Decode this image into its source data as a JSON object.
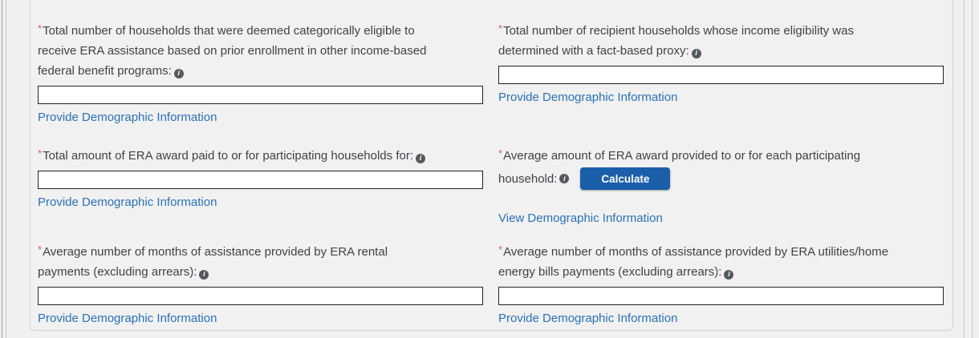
{
  "ui": {
    "required_marker": "*",
    "info_icon_glyph": "i",
    "colors": {
      "link": "#2b71b8",
      "button_bg": "#1b5faa",
      "required_marker": "#e0566d",
      "label_text": "#3e4247",
      "page_bg": "#f0f0f0",
      "panel_border": "#d2d2d2"
    }
  },
  "form": {
    "fields": [
      {
        "id": "categorically-eligible-households",
        "label": "Total number of households that were deemed categorically eligible to receive ERA assistance based on prior enrollment in other income-based federal benefit programs:",
        "label_lines": [
          "Total number of households that were deemed categorically eligible to",
          "receive ERA assistance based on prior enrollment in other income-based",
          "federal benefit programs:"
        ],
        "value": "",
        "link": "Provide Demographic Information"
      },
      {
        "id": "fact-based-proxy-households",
        "label": "Total number of recipient households whose income eligibility was determined with a fact-based proxy:",
        "label_lines": [
          "Total number of recipient households whose income eligibility was",
          "determined with a fact-based proxy:"
        ],
        "value": "",
        "link": "Provide Demographic Information"
      },
      {
        "id": "total-era-award-paid",
        "label": "Total amount of ERA award paid to or for participating households for:",
        "label_lines": [
          "Total amount of ERA award paid to or for participating households for:"
        ],
        "value": "",
        "link": "Provide Demographic Information"
      },
      {
        "id": "average-era-award",
        "label": "Average amount of ERA award provided to or for each participating household:",
        "label_lines": [
          "Average amount of ERA award provided to or for each participating",
          "household:"
        ],
        "button_label": "Calculate",
        "link": "View Demographic Information"
      },
      {
        "id": "average-months-rental",
        "label": "Average number of months of assistance provided by ERA rental payments (excluding arrears):",
        "label_lines": [
          "Average number of months of assistance provided by ERA rental",
          "payments (excluding arrears):"
        ],
        "value": "",
        "link": "Provide Demographic Information"
      },
      {
        "id": "average-months-utilities",
        "label": "Average number of months of assistance provided by ERA utilities/home energy bills payments (excluding arrears):",
        "label_lines": [
          "Average number of months of assistance provided by ERA utilities/home",
          "energy bills payments (excluding arrears):"
        ],
        "value": "",
        "link": "Provide Demographic Information"
      }
    ]
  }
}
